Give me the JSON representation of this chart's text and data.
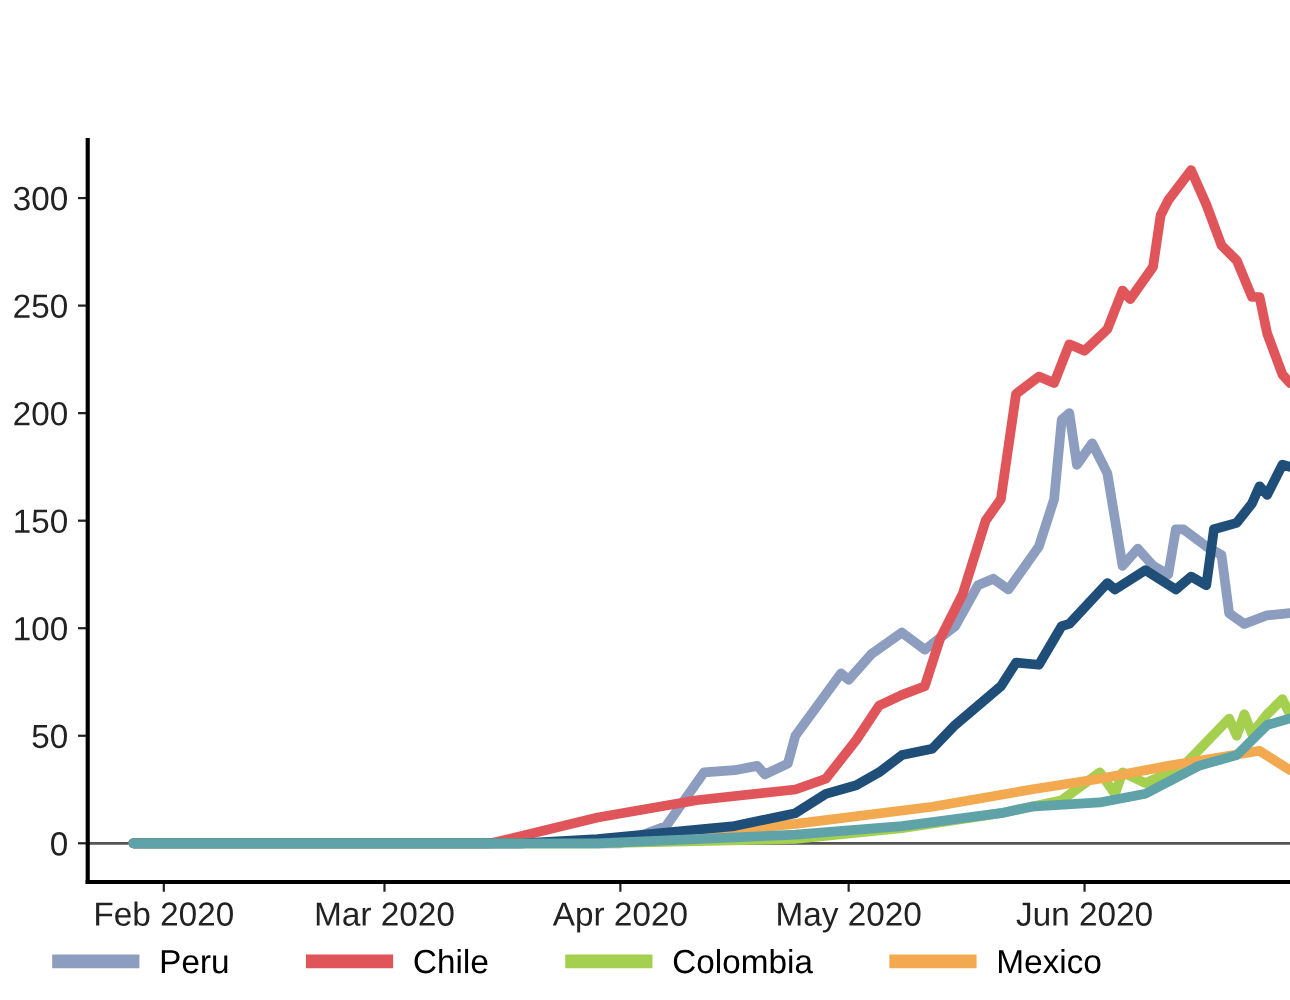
{
  "chart_data": {
    "type": "line",
    "xlim": [
      "2020-01-22",
      "2020-06-28"
    ],
    "xticks": [
      {
        "value": "2020-02-01",
        "label": "Feb 2020"
      },
      {
        "value": "2020-03-01",
        "label": "Mar 2020"
      },
      {
        "value": "2020-04-01",
        "label": "Apr 2020"
      },
      {
        "value": "2020-05-01",
        "label": "May 2020"
      },
      {
        "value": "2020-06-01",
        "label": "Jun 2020"
      }
    ],
    "ylim": [
      -18,
      327
    ],
    "yticks": [
      0,
      50,
      100,
      150,
      200,
      250,
      300
    ],
    "grid": false,
    "legend": "bottom",
    "line_style": "solid",
    "marker": "none",
    "ref_lines": [
      {
        "axis": "y",
        "value": 0,
        "color": "#555555"
      }
    ],
    "series": [
      {
        "name": "Peru",
        "color": "#8c9dbf",
        "x": [
          "2020-01-28",
          "2020-04-01",
          "2020-04-07",
          "2020-04-12",
          "2020-04-16",
          "2020-04-19",
          "2020-04-20",
          "2020-04-23",
          "2020-04-24",
          "2020-04-30",
          "2020-05-01",
          "2020-05-04",
          "2020-05-08",
          "2020-05-11",
          "2020-05-15",
          "2020-05-18",
          "2020-05-20",
          "2020-05-22",
          "2020-05-26",
          "2020-05-28",
          "2020-05-29",
          "2020-05-30",
          "2020-05-31",
          "2020-06-02",
          "2020-06-04",
          "2020-06-06",
          "2020-06-08",
          "2020-06-10",
          "2020-06-12",
          "2020-06-13",
          "2020-06-14",
          "2020-06-17",
          "2020-06-19",
          "2020-06-20",
          "2020-06-22",
          "2020-06-25",
          "2020-06-28"
        ],
        "values": [
          0,
          0,
          8,
          33,
          34,
          36,
          32,
          37,
          50,
          79,
          76,
          88,
          98,
          90,
          101,
          120,
          123,
          118,
          138,
          160,
          197,
          200,
          176,
          186,
          172,
          129,
          137,
          129,
          125,
          146,
          146,
          138,
          134,
          107,
          102,
          106,
          107
        ]
      },
      {
        "name": "Chile",
        "color": "#e05559",
        "x": [
          "2020-01-28",
          "2020-03-15",
          "2020-03-29",
          "2020-04-11",
          "2020-04-24",
          "2020-04-28",
          "2020-05-02",
          "2020-05-05",
          "2020-05-08",
          "2020-05-11",
          "2020-05-13",
          "2020-05-16",
          "2020-05-19",
          "2020-05-21",
          "2020-05-23",
          "2020-05-26",
          "2020-05-28",
          "2020-05-30",
          "2020-06-01",
          "2020-06-04",
          "2020-06-06",
          "2020-06-07",
          "2020-06-10",
          "2020-06-11",
          "2020-06-12",
          "2020-06-15",
          "2020-06-17",
          "2020-06-19",
          "2020-06-21",
          "2020-06-23",
          "2020-06-24",
          "2020-06-25",
          "2020-06-27",
          "2020-06-28"
        ],
        "values": [
          0,
          0,
          12,
          20,
          25,
          30,
          48,
          64,
          69,
          73,
          95,
          116,
          150,
          160,
          209,
          217,
          214,
          232,
          229,
          239,
          257,
          253,
          268,
          292,
          299,
          313,
          297,
          278,
          271,
          254,
          254,
          237,
          218,
          214
        ]
      },
      {
        "name": "Colombia",
        "color": "#a5cf4f",
        "x": [
          "2020-01-28",
          "2020-03-29",
          "2020-04-24",
          "2020-05-08",
          "2020-05-21",
          "2020-05-29",
          "2020-06-03",
          "2020-06-05",
          "2020-06-06",
          "2020-06-09",
          "2020-06-14",
          "2020-06-20",
          "2020-06-21",
          "2020-06-22",
          "2020-06-23",
          "2020-06-25",
          "2020-06-27",
          "2020-06-28"
        ],
        "values": [
          0,
          0,
          2,
          7,
          14,
          20,
          33,
          23,
          33,
          28,
          36,
          58,
          50,
          60,
          51,
          60,
          67,
          60
        ]
      },
      {
        "name": "Mexico",
        "color": "#f2a950",
        "x": [
          "2020-04-12",
          "2020-04-24",
          "2020-05-12",
          "2020-05-25",
          "2020-06-03",
          "2020-06-12",
          "2020-06-24",
          "2020-06-28"
        ],
        "values": [
          5,
          9,
          17,
          25,
          30,
          36,
          43,
          34
        ]
      },
      {
        "color": "#1f4e79",
        "x": [
          "2020-01-28",
          "2020-03-19",
          "2020-03-29",
          "2020-04-16",
          "2020-04-24",
          "2020-04-28",
          "2020-05-02",
          "2020-05-05",
          "2020-05-08",
          "2020-05-12",
          "2020-05-15",
          "2020-05-21",
          "2020-05-23",
          "2020-05-26",
          "2020-05-29",
          "2020-05-30",
          "2020-06-04",
          "2020-06-05",
          "2020-06-09",
          "2020-06-13",
          "2020-06-15",
          "2020-06-17",
          "2020-06-18",
          "2020-06-21",
          "2020-06-23",
          "2020-06-24",
          "2020-06-25",
          "2020-06-27",
          "2020-06-28"
        ],
        "values": [
          0,
          0,
          2,
          8,
          14,
          23,
          27,
          33,
          41,
          44,
          55,
          73,
          84,
          83,
          101,
          102,
          121,
          118,
          127,
          118,
          124,
          120,
          146,
          149,
          158,
          166,
          162,
          176,
          175
        ]
      },
      {
        "color": "#5fa3a8",
        "x": [
          "2020-01-28",
          "2020-03-29",
          "2020-04-24",
          "2020-05-08",
          "2020-05-21",
          "2020-05-25",
          "2020-06-03",
          "2020-06-09",
          "2020-06-16",
          "2020-06-21",
          "2020-06-25",
          "2020-06-28"
        ],
        "values": [
          0,
          0,
          4,
          8,
          14,
          17,
          19,
          23,
          36,
          41,
          55,
          58
        ]
      }
    ]
  }
}
